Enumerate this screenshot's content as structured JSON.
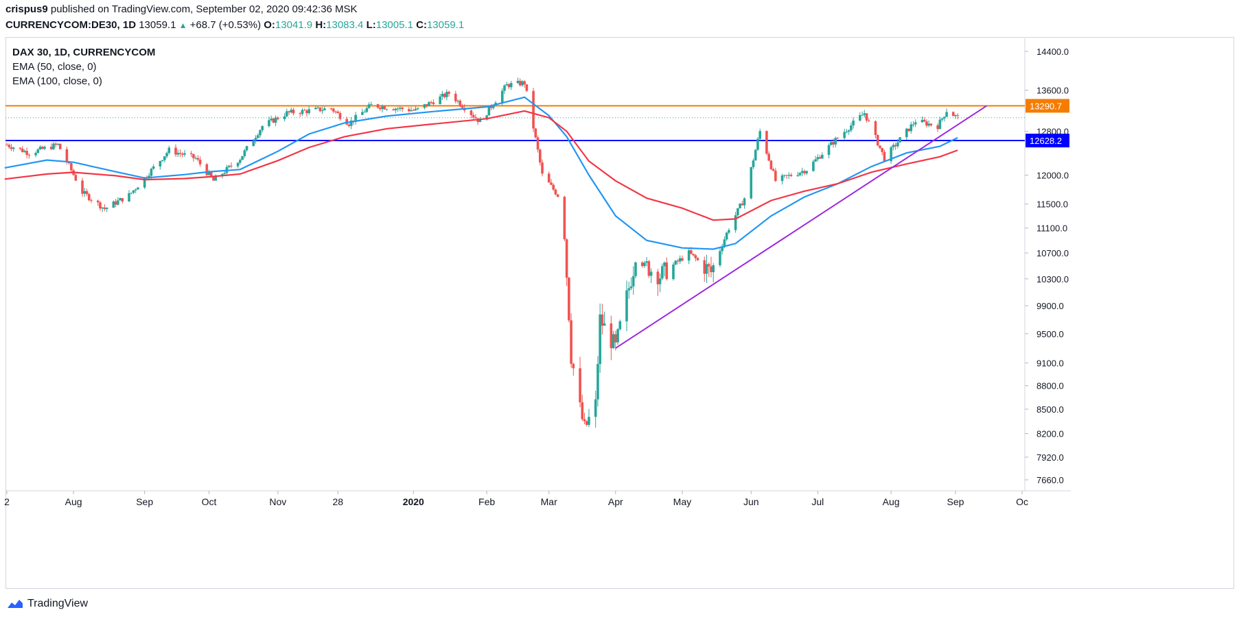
{
  "header": {
    "author": "crispus9",
    "published": "published on TradingView.com, September 02, 2020 09:42:36 MSK",
    "symbol": "CURRENCYCOM:DE30, 1D",
    "last": "13059.1",
    "change": "+68.7 (+0.53%)",
    "o_label": "O:",
    "o": "13041.9",
    "h_label": "H:",
    "h": "13083.4",
    "l_label": "L:",
    "l": "13005.1",
    "c_label": "C:",
    "c": "13059.1"
  },
  "legend": {
    "title": "DAX 30, 1D, CURRENCYCOM",
    "ema50": "EMA (50, close, 0)",
    "ema100": "EMA (100, close, 0)"
  },
  "brand": "TradingView",
  "colors": {
    "up": "#26a69a",
    "down": "#ef5350",
    "ema50": "#2196f3",
    "ema100": "#f23645",
    "resistance": "#f57c00",
    "support": "#0000ff",
    "trendline": "#9c27e0",
    "current": "#26a69a"
  },
  "chart_data": {
    "type": "candlestick",
    "symbol": "CURRENCYCOM:DE30",
    "interval": "1D",
    "y_axis": {
      "ticks": [
        14400,
        13600,
        12800,
        12000,
        11500,
        11100,
        10700,
        10300,
        9900,
        9500,
        9100,
        8800,
        8500,
        8200,
        7920,
        7660
      ],
      "tick_labels": [
        "14400.0",
        "13600.0",
        "12800.0",
        "12000.0",
        "11500.0",
        "11100.0",
        "10700.0",
        "10300.0",
        "9900.0",
        "9500.0",
        "9100.0",
        "8800.0",
        "8500.0",
        "8200.0",
        "7920.0",
        "7660.0"
      ],
      "scale": "log"
    },
    "x_axis": {
      "tick_labels": [
        "2",
        "Aug",
        "Sep",
        "Oct",
        "Nov",
        "28",
        "2020",
        "Feb",
        "Mar",
        "Apr",
        "May",
        "Jun",
        "Jul",
        "Aug",
        "Sep",
        "Oc"
      ],
      "tick_dates": [
        "2019-07-02",
        "2019-08-01",
        "2019-09-02",
        "2019-10-01",
        "2019-11-01",
        "2019-11-28",
        "2020-01-01",
        "2020-02-03",
        "2020-03-02",
        "2020-04-01",
        "2020-05-01",
        "2020-06-01",
        "2020-07-01",
        "2020-08-03",
        "2020-09-01",
        "2020-10-01"
      ],
      "bold_labels": [
        "2020"
      ]
    },
    "price_labels": [
      {
        "value": 13290.7,
        "label": "13290.7",
        "color": "#f57c00",
        "kind": "horizontal resistance"
      },
      {
        "value": 12628.2,
        "label": "12628.2",
        "color": "#0000ff",
        "kind": "horizontal support"
      }
    ],
    "current_price": 13059.1,
    "trendline": {
      "start": {
        "date": "2020-04-01",
        "value": 9300
      },
      "end": {
        "date": "2020-09-15",
        "value": 13290
      }
    },
    "series": [
      {
        "name": "EMA (50, close, 0)",
        "color": "#2196f3",
        "points": [
          [
            "2019-07-01",
            12130
          ],
          [
            "2019-07-20",
            12270
          ],
          [
            "2019-08-01",
            12230
          ],
          [
            "2019-08-20",
            12060
          ],
          [
            "2019-09-02",
            11950
          ],
          [
            "2019-09-20",
            12010
          ],
          [
            "2019-10-01",
            12060
          ],
          [
            "2019-10-15",
            12100
          ],
          [
            "2019-11-01",
            12430
          ],
          [
            "2019-11-15",
            12750
          ],
          [
            "2019-12-01",
            12960
          ],
          [
            "2019-12-20",
            13090
          ],
          [
            "2020-01-10",
            13180
          ],
          [
            "2020-02-03",
            13270
          ],
          [
            "2020-02-20",
            13460
          ],
          [
            "2020-03-02",
            13100
          ],
          [
            "2020-03-10",
            12700
          ],
          [
            "2020-03-20",
            12000
          ],
          [
            "2020-04-01",
            11300
          ],
          [
            "2020-04-15",
            10900
          ],
          [
            "2020-05-01",
            10780
          ],
          [
            "2020-05-15",
            10760
          ],
          [
            "2020-05-25",
            10850
          ],
          [
            "2020-06-10",
            11300
          ],
          [
            "2020-06-25",
            11620
          ],
          [
            "2020-07-10",
            11850
          ],
          [
            "2020-07-25",
            12150
          ],
          [
            "2020-08-10",
            12400
          ],
          [
            "2020-08-25",
            12520
          ],
          [
            "2020-09-02",
            12680
          ]
        ]
      },
      {
        "name": "EMA (100, close, 0)",
        "color": "#f23645",
        "points": [
          [
            "2019-07-01",
            11930
          ],
          [
            "2019-07-20",
            12020
          ],
          [
            "2019-08-01",
            12050
          ],
          [
            "2019-08-20",
            11990
          ],
          [
            "2019-09-02",
            11920
          ],
          [
            "2019-09-20",
            11940
          ],
          [
            "2019-10-01",
            11970
          ],
          [
            "2019-10-15",
            12020
          ],
          [
            "2019-11-01",
            12260
          ],
          [
            "2019-11-15",
            12500
          ],
          [
            "2019-12-01",
            12700
          ],
          [
            "2019-12-20",
            12850
          ],
          [
            "2020-01-10",
            12940
          ],
          [
            "2020-02-03",
            13040
          ],
          [
            "2020-02-20",
            13190
          ],
          [
            "2020-03-02",
            13060
          ],
          [
            "2020-03-10",
            12800
          ],
          [
            "2020-03-20",
            12250
          ],
          [
            "2020-04-01",
            11900
          ],
          [
            "2020-04-15",
            11600
          ],
          [
            "2020-05-01",
            11430
          ],
          [
            "2020-05-15",
            11230
          ],
          [
            "2020-05-25",
            11250
          ],
          [
            "2020-06-10",
            11560
          ],
          [
            "2020-06-25",
            11720
          ],
          [
            "2020-07-10",
            11850
          ],
          [
            "2020-07-25",
            12050
          ],
          [
            "2020-08-10",
            12200
          ],
          [
            "2020-08-25",
            12330
          ],
          [
            "2020-09-02",
            12450
          ]
        ]
      }
    ],
    "price_path": [
      [
        "2019-07-02",
        12550
      ],
      [
        "2019-07-12",
        12400
      ],
      [
        "2019-07-25",
        12550
      ],
      [
        "2019-08-05",
        11700
      ],
      [
        "2019-08-15",
        11420
      ],
      [
        "2019-08-26",
        11650
      ],
      [
        "2019-09-02",
        11950
      ],
      [
        "2019-09-13",
        12450
      ],
      [
        "2019-09-25",
        12300
      ],
      [
        "2019-10-03",
        11900
      ],
      [
        "2019-10-15",
        12300
      ],
      [
        "2019-10-25",
        12900
      ],
      [
        "2019-11-05",
        13150
      ],
      [
        "2019-11-25",
        13240
      ],
      [
        "2019-12-03",
        12950
      ],
      [
        "2019-12-13",
        13300
      ],
      [
        "2020-01-02",
        13200
      ],
      [
        "2020-01-17",
        13540
      ],
      [
        "2020-01-31",
        12980
      ],
      [
        "2020-02-12",
        13700
      ],
      [
        "2020-02-20",
        13750
      ],
      [
        "2020-02-28",
        12000
      ],
      [
        "2020-03-06",
        11650
      ],
      [
        "2020-03-09",
        10950
      ],
      [
        "2020-03-12",
        9200
      ],
      [
        "2020-03-16",
        8500
      ],
      [
        "2020-03-18",
        8250
      ],
      [
        "2020-03-23",
        8550
      ],
      [
        "2020-03-25",
        9700
      ],
      [
        "2020-04-01",
        9300
      ],
      [
        "2020-04-10",
        10600
      ],
      [
        "2020-04-21",
        10350
      ],
      [
        "2020-05-04",
        10700
      ],
      [
        "2020-05-14",
        10400
      ],
      [
        "2020-05-22",
        11100
      ],
      [
        "2020-05-29",
        11600
      ],
      [
        "2020-06-05",
        12800
      ],
      [
        "2020-06-12",
        11900
      ],
      [
        "2020-06-26",
        12100
      ],
      [
        "2020-07-08",
        12600
      ],
      [
        "2020-07-22",
        13150
      ],
      [
        "2020-07-31",
        12300
      ],
      [
        "2020-08-14",
        13000
      ],
      [
        "2020-08-24",
        12900
      ],
      [
        "2020-08-28",
        13200
      ],
      [
        "2020-09-02",
        13059.1
      ]
    ]
  }
}
